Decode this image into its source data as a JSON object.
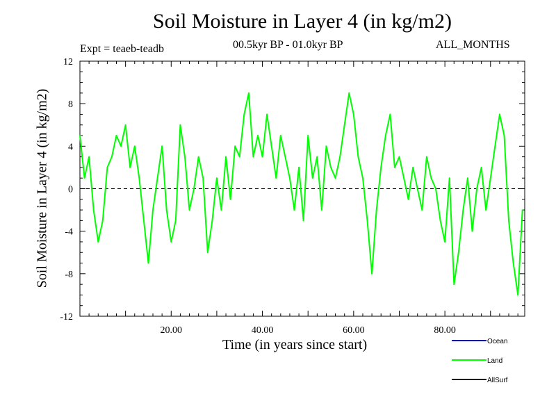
{
  "chart_data": {
    "type": "line",
    "title": "Soil Moisture in Layer 4 (in kg/m2)",
    "subtitle_left": "Expt = teaeb-teadb",
    "subtitle_center": "00.5kyr BP - 01.0kyr BP",
    "subtitle_right": "ALL_MONTHS",
    "xlabel": "Time (in years since start)",
    "ylabel": "Soil Moisture in Layer 4 (in kg/m2)",
    "xlim": [
      0,
      97.5
    ],
    "ylim": [
      -12,
      12
    ],
    "x_ticks": [
      20,
      40,
      60,
      80
    ],
    "x_tick_labels": [
      "20.00",
      "40.00",
      "60.00",
      "80.00"
    ],
    "y_ticks": [
      -12,
      -8,
      -4,
      0,
      4,
      8,
      12
    ],
    "y_tick_labels": [
      "-12",
      "-8",
      "-4",
      "0",
      "4",
      "8",
      "12"
    ],
    "zero_line": true,
    "legend": [
      {
        "name": "Ocean",
        "color": "#0000ff"
      },
      {
        "name": "Land",
        "color": "#00ff00"
      },
      {
        "name": "AllSurf",
        "color": "#000000"
      }
    ],
    "series": [
      {
        "name": "Land",
        "color": "#00ff00",
        "x": [
          0,
          1,
          2,
          3,
          4,
          5,
          6,
          7,
          8,
          9,
          10,
          11,
          12,
          13,
          14,
          15,
          16,
          17,
          18,
          19,
          20,
          21,
          22,
          23,
          24,
          25,
          26,
          27,
          28,
          29,
          30,
          31,
          32,
          33,
          34,
          35,
          36,
          37,
          38,
          39,
          40,
          41,
          42,
          43,
          44,
          45,
          46,
          47,
          48,
          49,
          50,
          51,
          52,
          53,
          54,
          55,
          56,
          57,
          58,
          59,
          60,
          61,
          62,
          63,
          64,
          65,
          66,
          67,
          68,
          69,
          70,
          71,
          72,
          73,
          74,
          75,
          76,
          77,
          78,
          79,
          80,
          81,
          82,
          83,
          84,
          85,
          86,
          87,
          88,
          89,
          90,
          91,
          92,
          93,
          94,
          95,
          96,
          97
        ],
        "values": [
          5,
          1,
          3,
          -2,
          -5,
          -3,
          2,
          3,
          5,
          4,
          6,
          2,
          4,
          1,
          -3,
          -7,
          -2,
          1,
          4,
          -2,
          -5,
          -3,
          6,
          3,
          -2,
          0,
          3,
          1,
          -6,
          -3,
          1,
          -2,
          3,
          -1,
          4,
          3,
          7,
          9,
          3,
          5,
          3,
          7,
          4,
          1,
          5,
          3,
          1,
          -2,
          2,
          -3,
          5,
          1,
          3,
          -2,
          4,
          2,
          1,
          3,
          6,
          9,
          7,
          3,
          1,
          -3,
          -8,
          -2,
          2,
          5,
          7,
          2,
          3,
          1,
          -1,
          2,
          0,
          -2,
          3,
          1,
          0,
          -3,
          -5,
          1,
          -9,
          -6,
          -2,
          1,
          -4,
          0,
          2,
          -2,
          1,
          4,
          7,
          5,
          -3,
          -7,
          -10,
          -2
        ]
      }
    ]
  }
}
